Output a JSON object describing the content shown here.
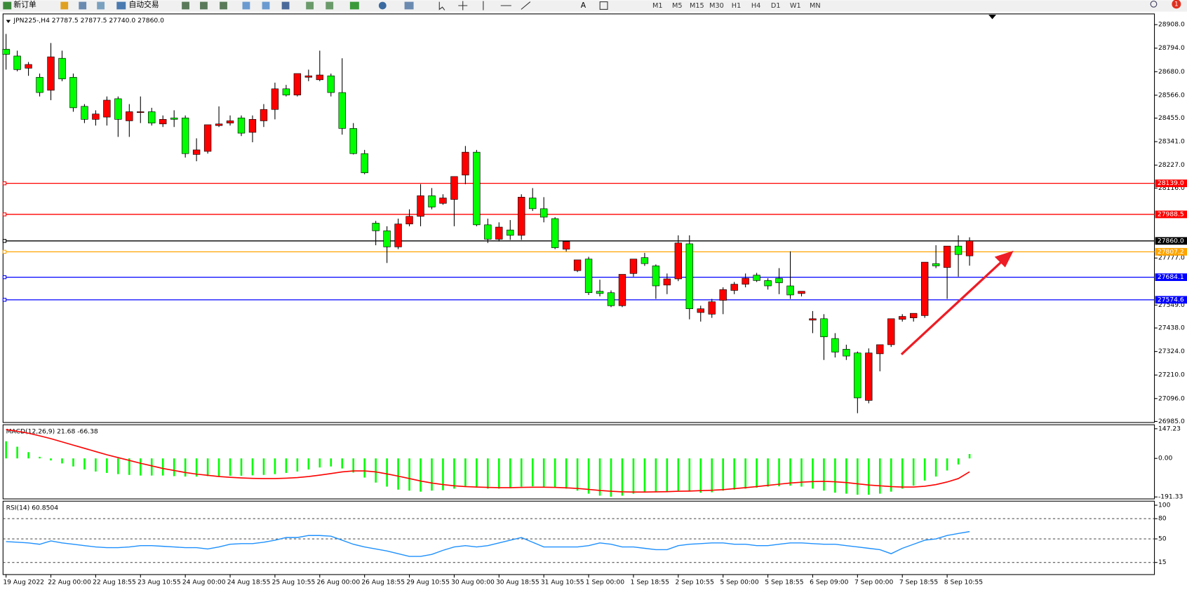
{
  "toolbar": {
    "buttons": [
      "新订单",
      "自动交易"
    ],
    "timeframes": [
      "M1",
      "M5",
      "M15",
      "M30",
      "H1",
      "H4",
      "D1",
      "W1",
      "MN"
    ],
    "alerts": "1"
  },
  "chart_data": [
    {
      "type": "candlestick",
      "title": "JPN225-,H4  27787.5 27877.5 27740.0 27860.0",
      "up_color": "#ff0000",
      "down_color": "#00ff00",
      "x": [
        "19 Aug 2022",
        null,
        null,
        null,
        "22 Aug 00:00",
        null,
        null,
        null,
        "22 Aug 18:55",
        null,
        null,
        null,
        "23 Aug 10:55",
        null,
        null,
        null,
        "24 Aug 00:00",
        null,
        null,
        null,
        "24 Aug 18:55",
        null,
        null,
        null,
        "25 Aug 10:55",
        null,
        null,
        null,
        "26 Aug 00:00",
        null,
        null,
        null,
        "26 Aug 18:55",
        null,
        null,
        null,
        "29 Aug 10:55",
        null,
        null,
        null,
        "30 Aug 00:00",
        null,
        null,
        null,
        "30 Aug 18:55",
        null,
        null,
        null,
        "31 Aug 10:55",
        null,
        null,
        null,
        "1 Sep 00:00",
        null,
        null,
        null,
        "1 Sep 18:55",
        null,
        null,
        null,
        "2 Sep 10:55",
        null,
        null,
        null,
        "5 Sep 00:00",
        null,
        null,
        null,
        "5 Sep 18:55",
        null,
        null,
        null,
        "6 Sep 09:00",
        null,
        null,
        null,
        "7 Sep 00:00",
        null,
        null,
        null,
        "7 Sep 18:55",
        null,
        null,
        null,
        "8 Sep 10:55",
        null,
        null
      ],
      "open": [
        28789,
        28756,
        28697,
        28653,
        28590,
        28745,
        28653,
        28512,
        28449,
        28460,
        28549,
        28442,
        28482,
        28486,
        28427,
        28456,
        28456,
        28279,
        28294,
        28419,
        28431,
        28456,
        28386,
        28442,
        28497,
        28597,
        28567,
        28653,
        28641,
        28660,
        28579,
        28405,
        28283,
        27946,
        27909,
        27831,
        27942,
        27979,
        28079,
        28042,
        28061,
        28179,
        28290,
        27938,
        27868,
        27913,
        27887,
        28068,
        28016,
        27968,
        27820,
        27716,
        27772,
        27616,
        27609,
        27546,
        27702,
        27779,
        27739,
        27646,
        27676,
        27846,
        27513,
        27505,
        27572,
        27620,
        27650,
        27694,
        27668,
        27679,
        27642,
        27605,
        27476,
        27483,
        27387,
        27335,
        27317,
        27087,
        27313,
        27357,
        27480,
        27487,
        27498,
        27750,
        27731,
        27835,
        27787.5
      ],
      "high": [
        28863,
        28782,
        28727,
        28671,
        28819,
        28782,
        28671,
        28523,
        28493,
        28560,
        28560,
        28523,
        28560,
        28505,
        28468,
        28493,
        28468,
        28357,
        28423,
        28512,
        28468,
        28468,
        28468,
        28523,
        28627,
        28616,
        28671,
        28690,
        28782,
        28671,
        28745,
        28431,
        28301,
        27957,
        27931,
        27968,
        28013,
        28135,
        28116,
        28086,
        28172,
        28320,
        28301,
        27968,
        27950,
        27961,
        28086,
        28116,
        28072,
        27975,
        27857,
        27768,
        27783,
        27672,
        27620,
        27698,
        27772,
        27802,
        27746,
        27702,
        27887,
        27887,
        27546,
        27579,
        27635,
        27661,
        27702,
        27705,
        27679,
        27728,
        27809,
        27616,
        27520,
        27505,
        27413,
        27357,
        27324,
        27339,
        27357,
        27483,
        27505,
        27509,
        27757,
        27839,
        27835,
        27887,
        27877.5
      ],
      "low": [
        28690,
        28682,
        28660,
        28560,
        28542,
        28634,
        28486,
        28431,
        28419,
        28419,
        28364,
        28364,
        28431,
        28419,
        28412,
        28412,
        28264,
        28246,
        28283,
        28412,
        28419,
        28368,
        28338,
        28412,
        28449,
        28560,
        28560,
        28634,
        28634,
        28560,
        28375,
        28279,
        28183,
        27839,
        27753,
        27820,
        27931,
        27931,
        28013,
        28035,
        27931,
        28135,
        27931,
        27850,
        27857,
        27865,
        27865,
        28005,
        27950,
        27820,
        27809,
        27709,
        27598,
        27591,
        27539,
        27539,
        27687,
        27739,
        27579,
        27602,
        27665,
        27480,
        27469,
        27487,
        27505,
        27602,
        27635,
        27661,
        27624,
        27602,
        27579,
        27591,
        27413,
        27283,
        27295,
        27283,
        27025,
        27073,
        27228,
        27346,
        27469,
        27469,
        27487,
        27728,
        27579,
        27687,
        27740
      ],
      "close": [
        28764,
        28690,
        28715,
        28579,
        28752,
        28645,
        28505,
        28449,
        28475,
        28542,
        28449,
        28486,
        28486,
        28431,
        28449,
        28449,
        28283,
        28301,
        28423,
        28427,
        28442,
        28382,
        28449,
        28497,
        28597,
        28567,
        28671,
        28660,
        28664,
        28579,
        28405,
        28283,
        28190,
        27909,
        27831,
        27942,
        27979,
        28079,
        28024,
        28068,
        28172,
        28290,
        27938,
        27868,
        27927,
        27887,
        28072,
        28016,
        27975,
        27827,
        27857,
        27768,
        27609,
        27605,
        27546,
        27698,
        27772,
        27750,
        27642,
        27676,
        27850,
        27531,
        27531,
        27565,
        27624,
        27650,
        27679,
        27668,
        27642,
        27657,
        27598,
        27616,
        27483,
        27395,
        27321,
        27302,
        27099,
        27317,
        27357,
        27483,
        27494,
        27509,
        27757,
        27739,
        27835,
        27794,
        27860
      ],
      "ylim": [
        26980,
        28960
      ],
      "yticks": [
        {
          "value": 28908.0,
          "label": "28908.0"
        },
        {
          "value": 28794.0,
          "label": "28794.0"
        },
        {
          "value": 28680.0,
          "label": "28680.0"
        },
        {
          "value": 28566.0,
          "label": "28566.0"
        },
        {
          "value": 28455.0,
          "label": "28455.0"
        },
        {
          "value": 28341.0,
          "label": "28341.0"
        },
        {
          "value": 28227.0,
          "label": "28227.0"
        },
        {
          "value": 28116.0,
          "label": "28116.0"
        },
        {
          "value": 27777.0,
          "label": "27777.0"
        },
        {
          "value": 27549.0,
          "label": "27549.0"
        },
        {
          "value": 27438.0,
          "label": "27438.0"
        },
        {
          "value": 27324.0,
          "label": "27324.0"
        },
        {
          "value": 27210.0,
          "label": "27210.0"
        },
        {
          "value": 27096.0,
          "label": "27096.0"
        },
        {
          "value": 26985.0,
          "label": "26985.0"
        }
      ],
      "hlines": [
        {
          "value": 28139.0,
          "label": "28139.0",
          "color": "#ff0000"
        },
        {
          "value": 27988.5,
          "label": "27988.5",
          "color": "#ff0000"
        },
        {
          "value": 27860.0,
          "label": "27860.0",
          "color": "#000000"
        },
        {
          "value": 27807.2,
          "label": "27807.2",
          "color": "#ffa500"
        },
        {
          "value": 27684.1,
          "label": "27684.1",
          "color": "#0000ff"
        },
        {
          "value": 27574.6,
          "label": "27574.6",
          "color": "#0000ff"
        }
      ]
    },
    {
      "type": "macd",
      "title": "MACD(12,26,9) 21.68 -66.38",
      "series": [
        {
          "style": "bar",
          "color": "#00ff00",
          "values": [
            85,
            58,
            31,
            8,
            -10,
            -25,
            -40,
            -55,
            -65,
            -72,
            -78,
            -82,
            -85,
            -85,
            -85,
            -88,
            -90,
            -90,
            -88,
            -88,
            -86,
            -86,
            -84,
            -82,
            -78,
            -72,
            -65,
            -55,
            -45,
            -40,
            -50,
            -70,
            -95,
            -120,
            -140,
            -155,
            -160,
            -165,
            -160,
            -158,
            -150,
            -140,
            -145,
            -150,
            -150,
            -148,
            -140,
            -138,
            -140,
            -145,
            -150,
            -160,
            -175,
            -185,
            -190,
            -185,
            -175,
            -170,
            -168,
            -165,
            -160,
            -165,
            -170,
            -168,
            -160,
            -155,
            -150,
            -145,
            -140,
            -138,
            -135,
            -140,
            -150,
            -160,
            -170,
            -175,
            -180,
            -180,
            -175,
            -165,
            -150,
            -135,
            -110,
            -90,
            -60,
            -30,
            21.68
          ]
        },
        {
          "style": "line",
          "color": "#ff0000",
          "values": [
            143,
            135,
            125,
            112,
            98,
            82,
            66,
            50,
            34,
            18,
            4,
            -10,
            -24,
            -37,
            -50,
            -60,
            -70,
            -78,
            -84,
            -90,
            -94,
            -97,
            -99,
            -100,
            -100,
            -98,
            -95,
            -90,
            -83,
            -75,
            -67,
            -62,
            -62,
            -67,
            -77,
            -88,
            -100,
            -112,
            -122,
            -130,
            -136,
            -140,
            -142,
            -144,
            -145,
            -145,
            -144,
            -143,
            -143,
            -144,
            -146,
            -149,
            -154,
            -159,
            -163,
            -166,
            -167,
            -167,
            -166,
            -165,
            -163,
            -162,
            -160,
            -158,
            -155,
            -150,
            -145,
            -140,
            -134,
            -128,
            -122,
            -118,
            -115,
            -114,
            -116,
            -120,
            -126,
            -132,
            -136,
            -140,
            -142,
            -142,
            -138,
            -130,
            -117,
            -100,
            -66.38
          ]
        }
      ],
      "ylim": [
        -201,
        167
      ],
      "yticks": [
        147.23,
        {
          "value": 0,
          "label": "0.00"
        },
        -191.33
      ]
    },
    {
      "type": "line",
      "title": "RSI(14) 60.8504",
      "color": "#1e90ff",
      "values": [
        46,
        45,
        44,
        42,
        47,
        44,
        42,
        40,
        38,
        37,
        37,
        38,
        40,
        40,
        39,
        38,
        37,
        37,
        35,
        38,
        42,
        43,
        43,
        45,
        48,
        52,
        52,
        55,
        55,
        54,
        48,
        42,
        38,
        35,
        32,
        28,
        24,
        24,
        27,
        33,
        38,
        40,
        38,
        40,
        44,
        48,
        52,
        45,
        38,
        38,
        38,
        38,
        40,
        44,
        42,
        38,
        38,
        36,
        34,
        34,
        40,
        42,
        43,
        44,
        44,
        42,
        42,
        40,
        40,
        42,
        44,
        44,
        43,
        42,
        42,
        40,
        38,
        36,
        34,
        28,
        36,
        42,
        48,
        50,
        55,
        58,
        60.8504
      ],
      "ylim": [
        -3,
        106
      ],
      "yticks": [
        100,
        80,
        50,
        15
      ],
      "grid": "dashed"
    }
  ]
}
